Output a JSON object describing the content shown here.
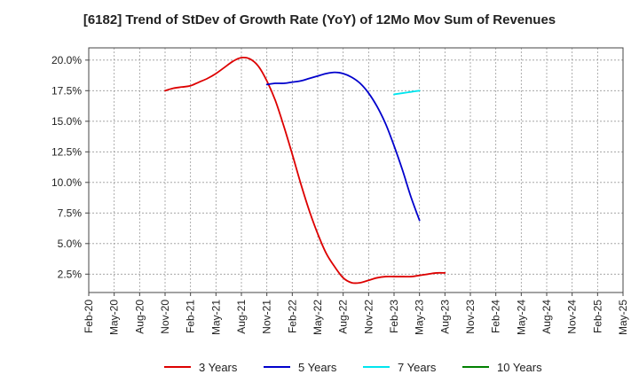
{
  "chart_data": {
    "type": "line",
    "title": "[6182]  Trend of StDev of Growth Rate (YoY) of 12Mo Mov Sum of Revenues",
    "xlabel": "",
    "ylabel": "",
    "ylim": [
      1.0,
      21.0
    ],
    "yticks": [
      2.5,
      5.0,
      7.5,
      10.0,
      12.5,
      15.0,
      17.5,
      20.0
    ],
    "ytick_labels": [
      "2.5%",
      "5.0%",
      "7.5%",
      "10.0%",
      "12.5%",
      "15.0%",
      "17.5%",
      "20.0%"
    ],
    "xticks": [
      "Feb-20",
      "May-20",
      "Aug-20",
      "Nov-20",
      "Feb-21",
      "May-21",
      "Aug-21",
      "Nov-21",
      "Feb-22",
      "May-22",
      "Aug-22",
      "Nov-22",
      "Feb-23",
      "May-23",
      "Aug-23",
      "Nov-23",
      "Feb-24",
      "May-24",
      "Aug-24",
      "Nov-24",
      "Feb-25",
      "May-25"
    ],
    "grid": true,
    "legend_position": "bottom",
    "series": [
      {
        "name": "3 Years",
        "color": "#dd0000",
        "points": [
          [
            9,
            17.5
          ],
          [
            10,
            17.7
          ],
          [
            11,
            17.8
          ],
          [
            12,
            17.9
          ],
          [
            13,
            18.2
          ],
          [
            14,
            18.5
          ],
          [
            15,
            18.9
          ],
          [
            16,
            19.4
          ],
          [
            17,
            19.9
          ],
          [
            18,
            20.2
          ],
          [
            19,
            20.1
          ],
          [
            20,
            19.5
          ],
          [
            21,
            18.3
          ],
          [
            22,
            16.7
          ],
          [
            23,
            14.6
          ],
          [
            24,
            12.3
          ],
          [
            25,
            9.9
          ],
          [
            26,
            7.7
          ],
          [
            27,
            5.8
          ],
          [
            28,
            4.2
          ],
          [
            29,
            3.1
          ],
          [
            30,
            2.2
          ],
          [
            31,
            1.8
          ],
          [
            32,
            1.8
          ],
          [
            33,
            2.0
          ],
          [
            34,
            2.2
          ],
          [
            35,
            2.3
          ],
          [
            36,
            2.3
          ],
          [
            37,
            2.3
          ],
          [
            38,
            2.3
          ],
          [
            39,
            2.4
          ],
          [
            40,
            2.5
          ],
          [
            41,
            2.6
          ],
          [
            42,
            2.6
          ]
        ]
      },
      {
        "name": "5 Years",
        "color": "#0000cc",
        "points": [
          [
            21,
            18.0
          ],
          [
            22,
            18.1
          ],
          [
            23,
            18.1
          ],
          [
            24,
            18.2
          ],
          [
            25,
            18.3
          ],
          [
            26,
            18.5
          ],
          [
            27,
            18.7
          ],
          [
            28,
            18.9
          ],
          [
            29,
            19.0
          ],
          [
            30,
            18.9
          ],
          [
            31,
            18.6
          ],
          [
            32,
            18.1
          ],
          [
            33,
            17.3
          ],
          [
            34,
            16.2
          ],
          [
            35,
            14.8
          ],
          [
            36,
            13.0
          ],
          [
            37,
            11.0
          ],
          [
            38,
            8.8
          ],
          [
            39,
            6.9
          ]
        ]
      },
      {
        "name": "7 Years",
        "color": "#00e5ee",
        "points": [
          [
            36,
            17.2
          ],
          [
            37,
            17.3
          ],
          [
            38,
            17.4
          ],
          [
            39,
            17.5
          ]
        ]
      },
      {
        "name": "10 Years",
        "color": "#008000",
        "points": []
      }
    ]
  }
}
